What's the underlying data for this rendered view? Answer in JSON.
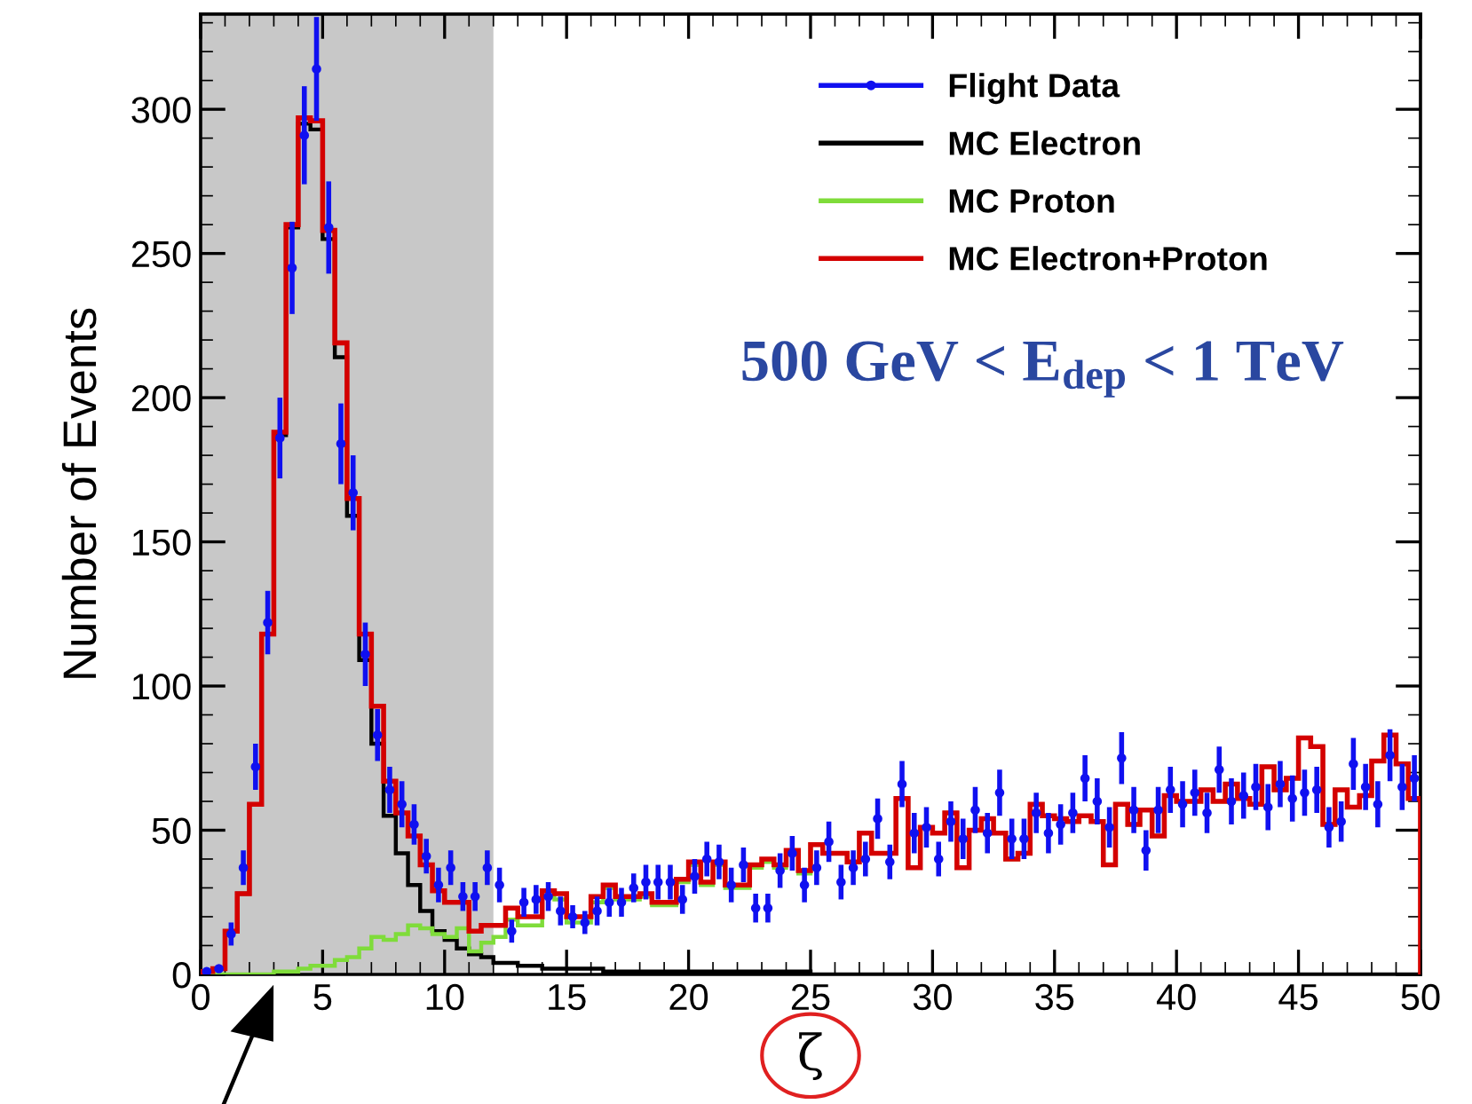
{
  "chart_data": {
    "type": "histogram",
    "xlabel": "ζ",
    "ylabel": "Number of Events",
    "annotations": [
      "500 GeV < E$_{dep}$ < 1 TeV"
    ],
    "bins": [
      0,
      0.5,
      1,
      1.5,
      2,
      2.5,
      3,
      3.5,
      4,
      4.5,
      5,
      5.5,
      6,
      6.5,
      7,
      7.5,
      8,
      8.5,
      9,
      9.5,
      10,
      10.5,
      11,
      11.5,
      12,
      12.5,
      13,
      13.5,
      14,
      14.5,
      15,
      15.5,
      16,
      16.5,
      17,
      17.5,
      18,
      18.5,
      19,
      19.5,
      20,
      20.5,
      21,
      21.5,
      22,
      22.5,
      23,
      23.5,
      24,
      24.5,
      25,
      25.5,
      26,
      26.5,
      27,
      27.5,
      28,
      28.5,
      29,
      29.5,
      30,
      30.5,
      31,
      31.5,
      32,
      32.5,
      33,
      33.5,
      34,
      34.5,
      35,
      35.5,
      36,
      36.5,
      37,
      37.5,
      38,
      38.5,
      39,
      39.5,
      40,
      40.5,
      41,
      41.5,
      42,
      42.5,
      43,
      43.5,
      44,
      44.5,
      45,
      45.5,
      46,
      46.5,
      47,
      47.5,
      48,
      48.5,
      49,
      49.5,
      50
    ],
    "series": [
      {
        "name": "Flight Data",
        "type": "scatter",
        "color": "#1010f0",
        "marker": "circle",
        "x": [
          0.25,
          0.75,
          1.25,
          1.75,
          2.25,
          2.75,
          3.25,
          3.75,
          4.25,
          4.75,
          5.25,
          5.75,
          6.25,
          6.75,
          7.25,
          7.75,
          8.25,
          8.75,
          9.25,
          9.75,
          10.25,
          10.75,
          11.25,
          11.75,
          12.25,
          12.75,
          13.25,
          13.75,
          14.25,
          14.75,
          15.25,
          15.75,
          16.25,
          16.75,
          17.25,
          17.75,
          18.25,
          18.75,
          19.25,
          19.75,
          20.25,
          20.75,
          21.25,
          21.75,
          22.25,
          22.75,
          23.25,
          23.75,
          24.25,
          24.75,
          25.25,
          25.75,
          26.25,
          26.75,
          27.25,
          27.75,
          28.25,
          28.75,
          29.25,
          29.75,
          30.25,
          30.75,
          31.25,
          31.75,
          32.25,
          32.75,
          33.25,
          33.75,
          34.25,
          34.75,
          35.25,
          35.75,
          36.25,
          36.75,
          37.25,
          37.75,
          38.25,
          38.75,
          39.25,
          39.75,
          40.25,
          40.75,
          41.25,
          41.75,
          42.25,
          42.75,
          43.25,
          43.75,
          44.25,
          44.75,
          45.25,
          45.75,
          46.25,
          46.75,
          47.25,
          47.75,
          48.25,
          48.75,
          49.25,
          49.75
        ],
        "values": [
          1,
          2,
          14,
          37,
          72,
          122,
          186,
          245,
          291,
          314,
          259,
          184,
          167,
          111,
          83,
          64,
          59,
          52,
          41,
          31,
          37,
          27,
          27,
          37,
          31,
          15,
          25,
          26,
          27,
          22,
          20,
          18,
          22,
          25,
          25,
          30,
          32,
          32,
          32,
          26,
          34,
          40,
          39,
          31,
          38,
          23,
          23,
          36,
          42,
          31,
          37,
          46,
          32,
          37,
          40,
          54,
          39,
          66,
          49,
          51,
          40,
          53,
          47,
          57,
          49,
          63,
          47,
          47,
          56,
          49,
          52,
          56,
          68,
          60,
          51,
          75,
          57,
          43,
          57,
          64,
          59,
          63,
          56,
          71,
          60,
          62,
          65,
          58,
          66,
          61,
          63,
          64,
          51,
          53,
          73,
          65,
          59,
          76,
          65,
          68
        ],
        "errors": [
          1,
          1,
          4,
          6,
          8,
          11,
          14,
          16,
          17,
          18,
          16,
          14,
          13,
          11,
          9,
          8,
          8,
          7,
          6,
          6,
          6,
          5,
          5,
          6,
          6,
          4,
          5,
          5,
          5,
          5,
          4,
          4,
          5,
          5,
          5,
          5,
          6,
          6,
          6,
          5,
          6,
          6,
          6,
          6,
          6,
          5,
          5,
          6,
          6,
          6,
          6,
          7,
          6,
          6,
          6,
          7,
          6,
          8,
          7,
          7,
          6,
          7,
          7,
          8,
          7,
          8,
          7,
          7,
          7,
          7,
          7,
          7,
          8,
          8,
          7,
          9,
          8,
          7,
          8,
          8,
          8,
          8,
          7,
          8,
          8,
          8,
          8,
          8,
          8,
          8,
          8,
          8,
          7,
          7,
          9,
          8,
          8,
          9,
          8,
          8
        ]
      },
      {
        "name": "MC Electron",
        "color": "#000000",
        "values": [
          1,
          2,
          15,
          28,
          59,
          118,
          187,
          259,
          295,
          293,
          255,
          214,
          159,
          109,
          80,
          55,
          42,
          31,
          22,
          15,
          12,
          9,
          7,
          6,
          4,
          4,
          3,
          3,
          2,
          2,
          2,
          2,
          2,
          1,
          1,
          1,
          1,
          1,
          1,
          1,
          1,
          1,
          1,
          1,
          1,
          1,
          1,
          1,
          1,
          1,
          0,
          0,
          0,
          0,
          0,
          0,
          0,
          0,
          0,
          0,
          0,
          0,
          0,
          0,
          0,
          0,
          0,
          0,
          0,
          0,
          0,
          0,
          0,
          0,
          0,
          0,
          0,
          0,
          0,
          0,
          0,
          0,
          0,
          0,
          0,
          0,
          0,
          0,
          0,
          0,
          0,
          0,
          0,
          0,
          0,
          0,
          0,
          0,
          0,
          0
        ]
      },
      {
        "name": "MC Proton",
        "color": "#7fdc3a",
        "values": [
          0,
          0,
          0,
          0,
          0,
          0,
          1,
          1,
          2,
          3,
          3,
          5,
          6,
          9,
          13,
          12,
          14,
          17,
          16,
          14,
          13,
          16,
          8,
          11,
          13,
          19,
          17,
          17,
          27,
          26,
          18,
          18,
          25,
          30,
          26,
          26,
          27,
          24,
          24,
          32,
          38,
          31,
          38,
          30,
          30,
          37,
          39,
          37,
          42,
          35,
          45,
          42,
          42,
          39,
          49,
          42,
          42,
          61,
          37,
          51,
          49,
          56,
          37,
          50,
          54,
          49,
          40,
          42,
          59,
          55,
          54,
          53,
          55,
          53,
          38,
          59,
          52,
          57,
          48,
          62,
          60,
          60,
          64,
          60,
          66,
          61,
          59,
          72,
          64,
          68,
          82,
          79,
          52,
          64,
          58,
          62,
          74,
          83,
          73,
          61
        ]
      },
      {
        "name": "MC Electron+Proton",
        "color": "#d40000",
        "values": [
          1,
          2,
          15,
          28,
          59,
          118,
          188,
          260,
          297,
          296,
          258,
          219,
          165,
          118,
          93,
          67,
          56,
          48,
          38,
          29,
          25,
          25,
          15,
          17,
          17,
          23,
          20,
          20,
          29,
          28,
          20,
          20,
          27,
          31,
          27,
          27,
          28,
          25,
          25,
          33,
          39,
          32,
          39,
          31,
          31,
          38,
          40,
          38,
          43,
          36,
          45,
          42,
          42,
          39,
          49,
          42,
          42,
          61,
          37,
          51,
          49,
          56,
          37,
          50,
          54,
          49,
          40,
          42,
          59,
          55,
          54,
          53,
          55,
          53,
          38,
          59,
          52,
          57,
          48,
          62,
          60,
          60,
          64,
          60,
          66,
          61,
          59,
          72,
          64,
          68,
          82,
          79,
          52,
          64,
          58,
          62,
          74,
          83,
          73,
          61
        ]
      }
    ],
    "bands": [
      {
        "axis": "x",
        "from": 0,
        "to": 12,
        "color": "#c8c8c8"
      }
    ],
    "xlim": [
      0,
      50
    ],
    "ylim": [
      0,
      333
    ],
    "xticks": [
      0,
      5,
      10,
      15,
      20,
      25,
      30,
      35,
      40,
      45,
      50
    ],
    "yticks": [
      0,
      50,
      100,
      150,
      200,
      250,
      300
    ],
    "legend": "top right"
  }
}
